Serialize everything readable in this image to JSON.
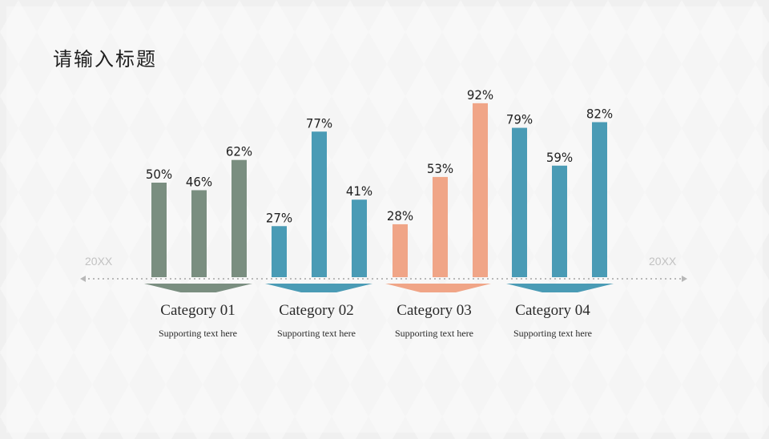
{
  "title": "请输入标题",
  "timeline": {
    "start_label": "20XX",
    "end_label": "20XX"
  },
  "colors": {
    "sage": "#7a8e80",
    "teal": "#4a9bb5",
    "salmon": "#f0a587",
    "arrow": "#b8b8b8"
  },
  "categories": [
    {
      "label": "Category 01",
      "sub": "Supporting text here",
      "color": "#7a8e80"
    },
    {
      "label": "Category 02",
      "sub": "Supporting text here",
      "color": "#4a9bb5"
    },
    {
      "label": "Category 03",
      "sub": "Supporting text here",
      "color": "#f0a587"
    },
    {
      "label": "Category 04",
      "sub": "Supporting text here",
      "color": "#4a9bb5"
    }
  ],
  "chart_data": {
    "type": "bar",
    "categories": [
      "Category 01",
      "Category 02",
      "Category 03",
      "Category 04"
    ],
    "values": [
      [
        50,
        46,
        62
      ],
      [
        27,
        77,
        41
      ],
      [
        28,
        53,
        92
      ],
      [
        79,
        59,
        82
      ]
    ],
    "labels": [
      [
        "50%",
        "46%",
        "62%"
      ],
      [
        "27%",
        "77%",
        "41%"
      ],
      [
        "28%",
        "53%",
        "92%"
      ],
      [
        "79%",
        "59%",
        "82%"
      ]
    ],
    "unit": "%",
    "ylim": [
      0,
      100
    ],
    "grid": false
  }
}
